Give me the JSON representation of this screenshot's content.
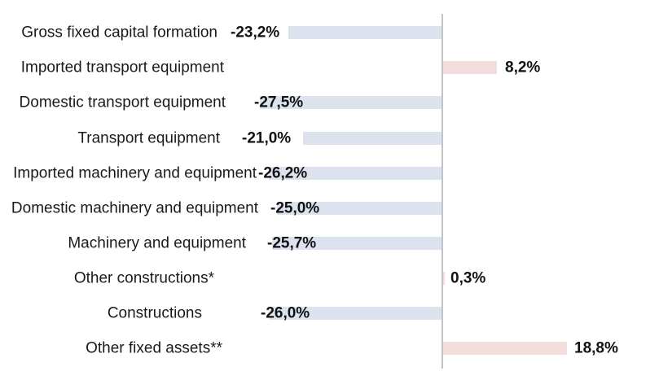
{
  "chart_data": {
    "type": "bar",
    "orientation": "horizontal",
    "title": "",
    "xlabel": "",
    "ylabel": "",
    "grid": false,
    "legend": false,
    "value_axis_hidden": true,
    "zero_baseline_shown": true,
    "xlim": [
      -33,
      33
    ],
    "categories": [
      "Gross fixed capital formation",
      "Imported transport equipment",
      "Domestic transport equipment",
      "Transport equipment",
      "Imported machinery and equipment",
      "Domestic machinery and equipment",
      "Machinery and equipment",
      "Other constructions*",
      "Constructions",
      "Other fixed assets**"
    ],
    "values": [
      -23.2,
      8.2,
      -27.5,
      -21.0,
      -26.2,
      -25.0,
      -25.7,
      0.3,
      -26.0,
      18.8
    ],
    "data_labels": [
      "-23,2%",
      "8,2%",
      "-27,5%",
      "-21,0%",
      "-26,2%",
      "-25,0%",
      "-25,7%",
      "0,3%",
      "-26,0%",
      "18,8%"
    ],
    "colors": {
      "negative_bar": "#dce3ef",
      "positive_bar": "#f1dddb",
      "axis_line": "#c0c4c4",
      "label_text": "#111111"
    }
  }
}
